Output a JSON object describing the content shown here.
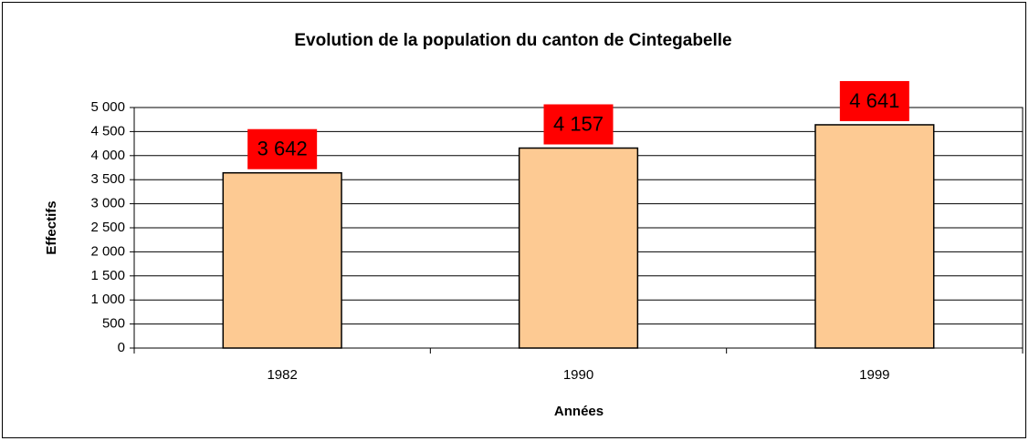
{
  "chart_data": {
    "type": "bar",
    "title": "Evolution de la population du canton de Cintegabelle",
    "x_label": "Années",
    "y_label": "Effectifs",
    "categories": [
      "1982",
      "1990",
      "1999"
    ],
    "values": [
      3642,
      4157,
      4641
    ],
    "value_labels": [
      "3 642",
      "4 157",
      "4 641"
    ],
    "color": "#fdca93",
    "label_color": "#ff0000",
    "ylim": [
      0,
      5000
    ],
    "yticks": [
      0,
      500,
      {
        "value": 1000,
        "label": "1 000"
      },
      {
        "value": 1500,
        "label": "1 500"
      },
      {
        "value": 2000,
        "label": "2 000"
      },
      {
        "value": 2500,
        "label": "2 500"
      },
      {
        "value": 3000,
        "label": "3 000"
      },
      {
        "value": 3500,
        "label": "3 500"
      },
      {
        "value": 4000,
        "label": "4 000"
      },
      {
        "value": 4500,
        "label": "4 500"
      },
      {
        "value": 5000,
        "label": "5 000"
      }
    ],
    "grid": true
  }
}
